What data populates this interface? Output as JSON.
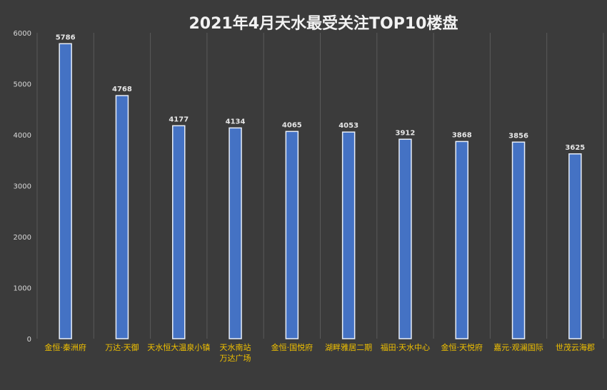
{
  "chart_data": {
    "type": "bar",
    "title": "2021年4月天水最受关注TOP10楼盘",
    "xlabel": "",
    "ylabel": "",
    "ylim": [
      0,
      6000
    ],
    "yticks": [
      0,
      1000,
      2000,
      3000,
      4000,
      5000,
      6000
    ],
    "grid": "vertical",
    "categories": [
      [
        "金恒·秦洲府"
      ],
      [
        "万达·天御"
      ],
      [
        "天水恒大温泉小镇"
      ],
      [
        "天水南站",
        "万达广场"
      ],
      [
        "金恒·国悦府"
      ],
      [
        "湖畔雅居二期"
      ],
      [
        "福田·天水中心"
      ],
      [
        "金恒·天悦府"
      ],
      [
        "嘉元·观澜国际"
      ],
      [
        "世茂云海郡"
      ]
    ],
    "values": [
      5786,
      4768,
      4177,
      4134,
      4065,
      4053,
      3912,
      3868,
      3856,
      3625
    ],
    "colors": {
      "background": "#3b3b3b",
      "bar": "#4472c4",
      "bar_outline": "#e8eef8",
      "category_label": "#f0c000",
      "value_label": "#e6e6e6",
      "title": "#f2f2f2"
    }
  }
}
